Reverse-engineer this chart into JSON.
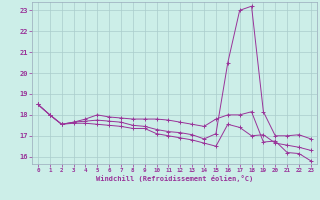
{
  "bg_color": "#cceee8",
  "grid_color": "#aacccc",
  "line_color": "#993399",
  "xlim_min": -0.5,
  "xlim_max": 23.5,
  "ylim_min": 15.65,
  "ylim_max": 23.4,
  "yticks": [
    16,
    17,
    18,
    19,
    20,
    21,
    22,
    23
  ],
  "xticks": [
    0,
    1,
    2,
    3,
    4,
    5,
    6,
    7,
    8,
    9,
    10,
    11,
    12,
    13,
    14,
    15,
    16,
    17,
    18,
    19,
    20,
    21,
    22,
    23
  ],
  "xlabel": "Windchill (Refroidissement éolien,°C)",
  "series": [
    [
      18.5,
      18.0,
      17.55,
      17.65,
      17.8,
      18.0,
      17.9,
      17.85,
      17.8,
      17.8,
      17.8,
      17.75,
      17.65,
      17.55,
      17.45,
      17.8,
      18.0,
      18.0,
      18.15,
      16.7,
      16.75,
      16.2,
      16.15,
      15.8
    ],
    [
      18.5,
      18.0,
      17.55,
      17.65,
      17.7,
      17.75,
      17.7,
      17.65,
      17.5,
      17.45,
      17.3,
      17.2,
      17.15,
      17.05,
      16.85,
      17.1,
      20.5,
      23.0,
      23.2,
      18.15,
      17.0,
      17.0,
      17.05,
      16.85
    ],
    [
      18.5,
      18.0,
      17.55,
      17.6,
      17.6,
      17.55,
      17.5,
      17.45,
      17.35,
      17.35,
      17.1,
      17.0,
      16.9,
      16.8,
      16.65,
      16.5,
      17.55,
      17.4,
      17.0,
      17.05,
      16.65,
      16.55,
      16.45,
      16.3
    ]
  ]
}
